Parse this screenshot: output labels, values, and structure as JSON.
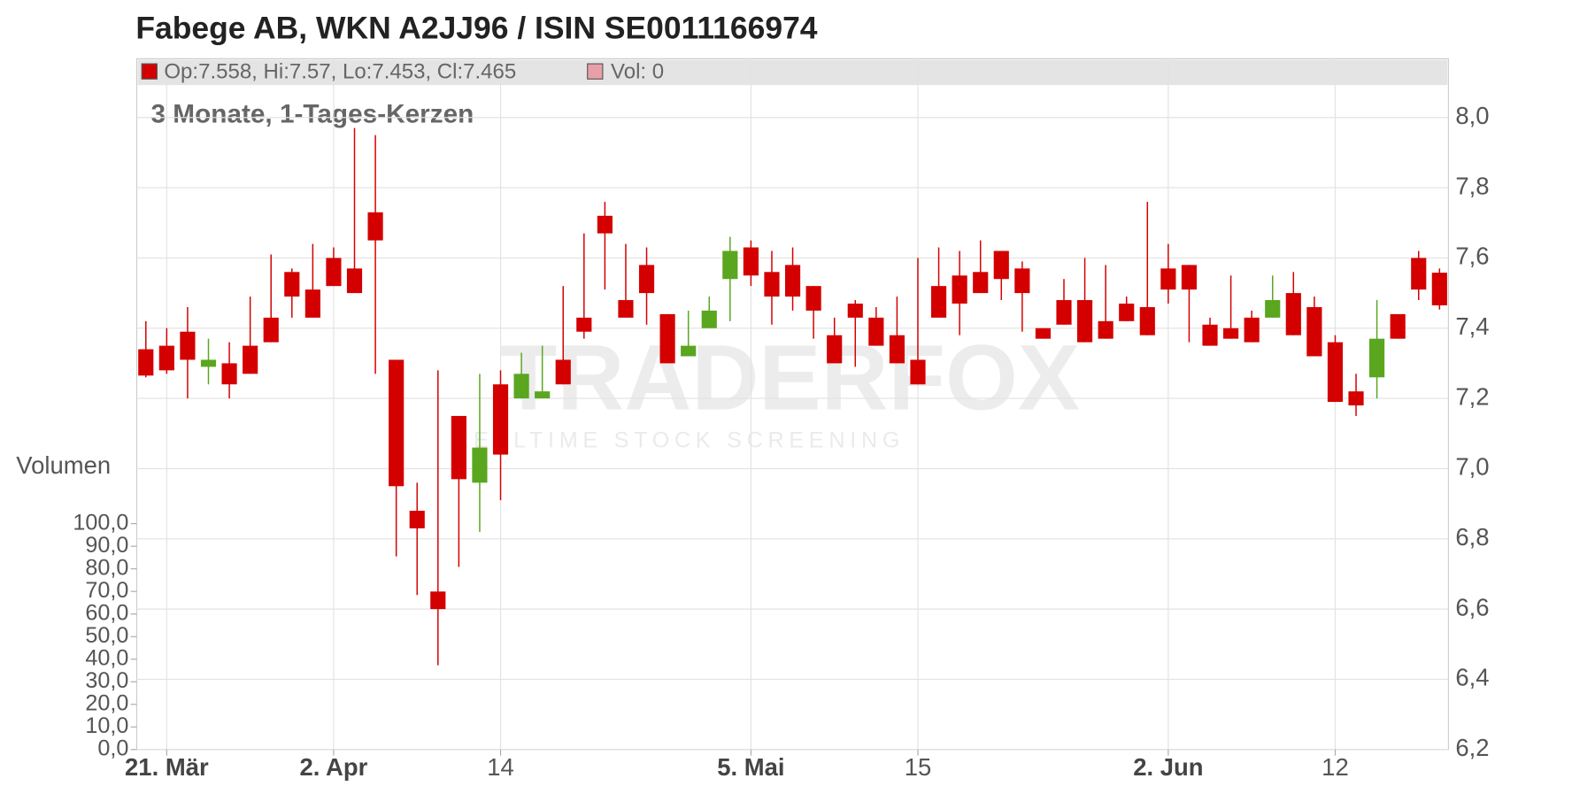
{
  "chart_data": {
    "type": "candlestick",
    "title": "Fabege AB, WKN A2JJ96 / ISIN SE0011166974",
    "subtitle": "3 Monate, 1-Tages-Kerzen",
    "legend": [
      "Op:7.558, Hi:7.57, Lo:7.453, Cl:7.465",
      "Vol: 0"
    ],
    "volume_label": "Volumen",
    "watermark": [
      "TRADERFOX",
      "REALTIME STOCK SCREENING"
    ],
    "up_color": "#5aa61f",
    "down_color": "#d40000",
    "volume_color": "#e8a0a8",
    "categories": [
      null,
      "21. Mär",
      null,
      null,
      null,
      null,
      null,
      null,
      null,
      "2. Apr",
      null,
      null,
      null,
      null,
      null,
      null,
      null,
      "14",
      null,
      null,
      null,
      null,
      null,
      null,
      null,
      null,
      null,
      null,
      null,
      "5. Mai",
      null,
      null,
      null,
      null,
      null,
      null,
      null,
      "15",
      null,
      null,
      null,
      null,
      null,
      null,
      null,
      null,
      null,
      null,
      null,
      "2. Jun",
      null,
      null,
      null,
      null,
      null,
      null,
      null,
      "12",
      null,
      null,
      null,
      null,
      null
    ],
    "open": [
      7.34,
      7.35,
      7.39,
      7.29,
      7.3,
      7.35,
      7.43,
      7.56,
      7.51,
      7.6,
      7.57,
      7.73,
      7.31,
      6.88,
      6.65,
      7.15,
      6.96,
      7.24,
      7.2,
      7.2,
      7.31,
      7.43,
      7.72,
      7.48,
      7.58,
      7.44,
      7.32,
      7.4,
      7.54,
      7.63,
      7.56,
      7.58,
      7.52,
      7.38,
      7.47,
      7.43,
      7.38,
      7.31,
      7.52,
      7.55,
      7.56,
      7.62,
      7.57,
      7.4,
      7.48,
      7.48,
      7.42,
      7.47,
      7.46,
      7.57,
      7.58,
      7.41,
      7.4,
      7.43,
      7.43,
      7.5,
      7.46,
      7.36,
      7.22,
      7.26,
      7.44,
      7.6,
      7.558
    ],
    "high": [
      7.42,
      7.4,
      7.46,
      7.37,
      7.36,
      7.49,
      7.61,
      7.57,
      7.64,
      7.63,
      7.97,
      7.95,
      7.31,
      6.96,
      7.28,
      7.15,
      7.27,
      7.28,
      7.33,
      7.35,
      7.52,
      7.67,
      7.76,
      7.64,
      7.63,
      7.44,
      7.45,
      7.49,
      7.66,
      7.65,
      7.62,
      7.63,
      7.52,
      7.43,
      7.48,
      7.46,
      7.49,
      7.6,
      7.63,
      7.62,
      7.65,
      7.62,
      7.59,
      7.4,
      7.54,
      7.6,
      7.58,
      7.49,
      7.76,
      7.64,
      7.58,
      7.43,
      7.55,
      7.45,
      7.55,
      7.56,
      7.49,
      7.38,
      7.27,
      7.48,
      7.44,
      7.62,
      7.57
    ],
    "low": [
      7.26,
      7.27,
      7.2,
      7.24,
      7.2,
      7.27,
      7.36,
      7.43,
      7.43,
      7.52,
      7.5,
      7.27,
      6.75,
      6.64,
      6.44,
      6.72,
      6.82,
      6.91,
      7.2,
      7.2,
      7.24,
      7.37,
      7.51,
      7.43,
      7.41,
      7.3,
      7.32,
      7.4,
      7.42,
      7.52,
      7.41,
      7.45,
      7.37,
      7.3,
      7.29,
      7.35,
      7.3,
      7.24,
      7.43,
      7.38,
      7.5,
      7.48,
      7.39,
      7.37,
      7.41,
      7.36,
      7.37,
      7.42,
      7.38,
      7.47,
      7.36,
      7.35,
      7.37,
      7.36,
      7.43,
      7.38,
      7.32,
      7.19,
      7.15,
      7.2,
      7.37,
      7.48,
      7.453
    ],
    "close": [
      7.265,
      7.28,
      7.31,
      7.31,
      7.24,
      7.27,
      7.36,
      7.49,
      7.43,
      7.52,
      7.5,
      7.65,
      6.95,
      6.83,
      6.6,
      6.97,
      7.06,
      7.04,
      7.27,
      7.22,
      7.24,
      7.39,
      7.67,
      7.43,
      7.5,
      7.3,
      7.35,
      7.45,
      7.62,
      7.55,
      7.49,
      7.49,
      7.45,
      7.3,
      7.43,
      7.35,
      7.3,
      7.24,
      7.43,
      7.47,
      7.5,
      7.54,
      7.5,
      7.37,
      7.41,
      7.36,
      7.37,
      7.42,
      7.38,
      7.51,
      7.51,
      7.35,
      7.37,
      7.36,
      7.48,
      7.38,
      7.32,
      7.19,
      7.18,
      7.37,
      7.37,
      7.51,
      7.465
    ],
    "ylim": [
      6.2,
      8.0
    ],
    "yticks": [
      {
        "value": 6.2,
        "label": "6,2"
      },
      {
        "value": 6.4,
        "label": "6,4"
      },
      {
        "value": 6.6,
        "label": "6,6"
      },
      {
        "value": 6.8,
        "label": "6,8"
      },
      {
        "value": 7.0,
        "label": "7,0"
      },
      {
        "value": 7.2,
        "label": "7,2"
      },
      {
        "value": 7.4,
        "label": "7,4"
      },
      {
        "value": 7.6,
        "label": "7,6"
      },
      {
        "value": 7.8,
        "label": "7,8"
      },
      {
        "value": 8.0,
        "label": "8,0"
      }
    ],
    "y2lim": [
      0,
      100
    ],
    "y2ticks": [
      {
        "value": 0,
        "label": "0,0"
      },
      {
        "value": 10,
        "label": "10,0"
      },
      {
        "value": 20,
        "label": "20,0"
      },
      {
        "value": 30,
        "label": "30,0"
      },
      {
        "value": 40,
        "label": "40,0"
      },
      {
        "value": 50,
        "label": "50,0"
      },
      {
        "value": 60,
        "label": "60,0"
      },
      {
        "value": 70,
        "label": "70,0"
      },
      {
        "value": 80,
        "label": "80,0"
      },
      {
        "value": 90,
        "label": "90,0"
      },
      {
        "value": 100,
        "label": "100,0"
      }
    ],
    "grid": true
  }
}
